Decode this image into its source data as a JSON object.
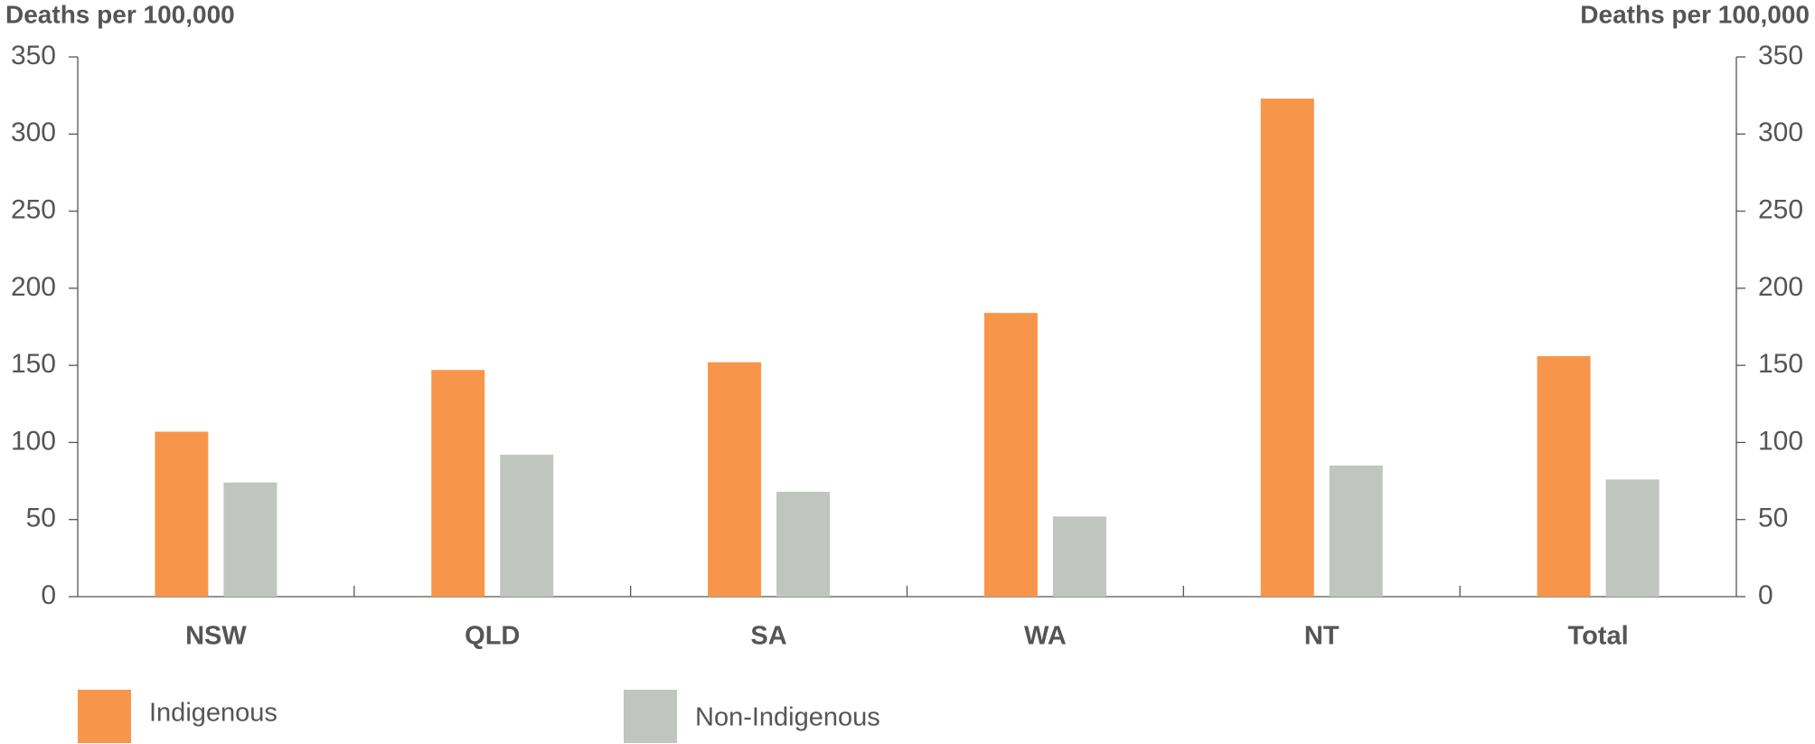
{
  "chart_data": {
    "type": "bar",
    "y_label": "Deaths per 100,000",
    "y2_label": "Deaths per 100,000",
    "categories": [
      "NSW",
      "QLD",
      "SA",
      "WA",
      "NT",
      "Total"
    ],
    "series": [
      {
        "name": "Indigenous",
        "color": "#f7964a",
        "values": [
          107,
          147,
          152,
          184,
          323,
          156
        ]
      },
      {
        "name": "Non-Indigenous",
        "color": "#c0c5bf",
        "values": [
          74,
          92,
          68,
          52,
          85,
          76
        ]
      }
    ],
    "ylim": [
      0,
      350
    ],
    "yticks": [
      0,
      50,
      100,
      150,
      200,
      250,
      300,
      350
    ],
    "y2lim": [
      0,
      350
    ],
    "y2ticks": [
      0,
      50,
      100,
      150,
      200,
      250,
      300,
      350
    ],
    "grid": false
  }
}
